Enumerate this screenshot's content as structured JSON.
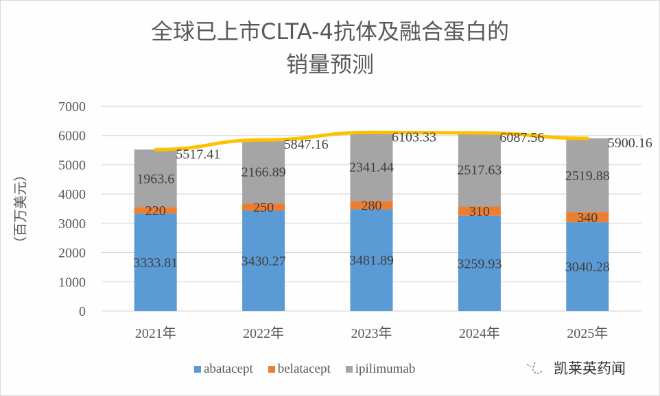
{
  "title": {
    "line1": "全球已上市CLTA-4抗体及融合蛋白的",
    "line2": "销量预测"
  },
  "y_axis_label": "（百万美元）",
  "legend": [
    {
      "name": "abatacept",
      "color": "#5b9bd5"
    },
    {
      "name": "belatacept",
      "color": "#ed7d31"
    },
    {
      "name": "ipilimumab",
      "color": "#a5a5a5"
    }
  ],
  "watermark": {
    "text": "凯莱英药闻"
  },
  "colors": {
    "total_line": "#ffc000",
    "grid": "#d9d9d9",
    "text": "#404040"
  },
  "chart_data": {
    "type": "bar",
    "stacked": true,
    "title": "全球已上市CLTA-4抗体及融合蛋白的销量预测",
    "xlabel": "",
    "ylabel": "（百万美元）",
    "ylim": [
      0,
      7000
    ],
    "yticks": [
      0,
      1000,
      2000,
      3000,
      4000,
      5000,
      6000,
      7000
    ],
    "grid": true,
    "legend_position": "bottom",
    "categories": [
      "2021年",
      "2022年",
      "2023年",
      "2024年",
      "2025年"
    ],
    "series": [
      {
        "name": "abatacept",
        "values": [
          3333.81,
          3430.27,
          3481.89,
          3259.93,
          3040.28
        ],
        "labels": [
          "3333.81",
          "3430.27",
          "3481.89",
          "3259.93",
          "3040.28"
        ]
      },
      {
        "name": "belatacept",
        "values": [
          220,
          250,
          280,
          310,
          340
        ],
        "labels": [
          "220",
          "250",
          "280",
          "310",
          "340"
        ]
      },
      {
        "name": "ipilimumab",
        "values": [
          1963.6,
          2166.89,
          2341.44,
          2517.63,
          2519.88
        ],
        "labels": [
          "1963.6",
          "2166.89",
          "2341.44",
          "2517.63",
          "2519.88"
        ]
      }
    ],
    "total_line": {
      "name": "total",
      "type": "line",
      "values": [
        5517.41,
        5847.16,
        6103.33,
        6087.56,
        5900.16
      ],
      "labels": [
        "5517.41",
        "5847.16",
        "6103.33",
        "6087.56",
        "5900.16"
      ]
    }
  }
}
